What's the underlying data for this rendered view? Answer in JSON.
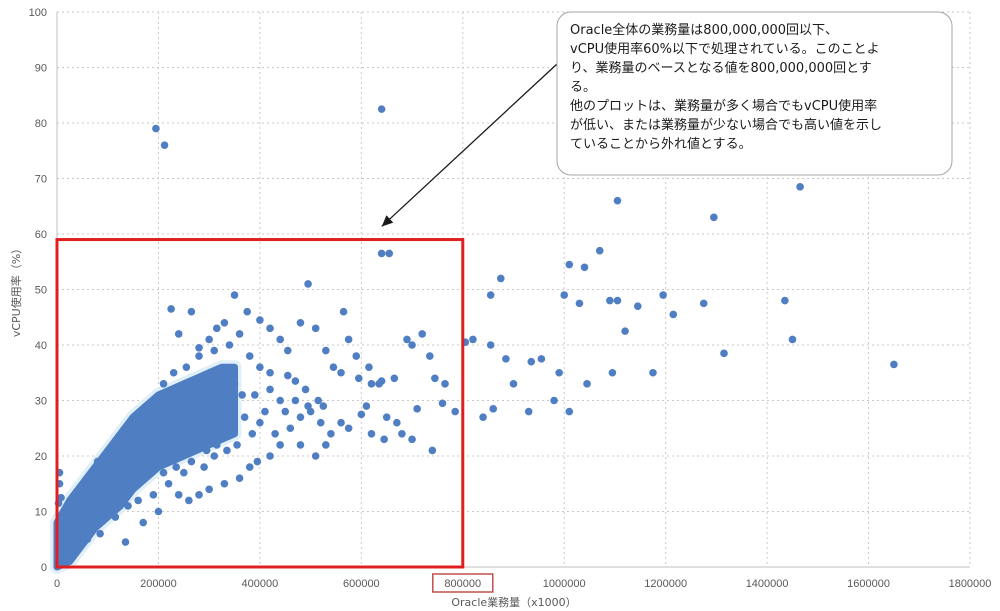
{
  "chart_data": {
    "type": "scatter",
    "title": "",
    "xlabel": "Oracle業務量（x1000）",
    "ylabel": "vCPU使用率（%）",
    "xlim": [
      0,
      1800000
    ],
    "ylim": [
      0,
      100
    ],
    "xticks": [
      0,
      200000,
      400000,
      600000,
      800000,
      1000000,
      1200000,
      1400000,
      1600000,
      1800000
    ],
    "xtick_labels": [
      "0",
      "200000",
      "400000",
      "600000",
      "800000",
      "1000000",
      "1200000",
      "1400000",
      "1600000",
      "1800000"
    ],
    "yticks": [
      0,
      10,
      20,
      30,
      40,
      50,
      60,
      70,
      80,
      90,
      100
    ],
    "ytick_labels": [
      "0",
      "10",
      "20",
      "30",
      "40",
      "50",
      "60",
      "70",
      "80",
      "90",
      "100"
    ],
    "grid": true,
    "point_color": "#4f7ec2",
    "highlight_box": {
      "x": [
        0,
        800000
      ],
      "y": [
        0,
        59
      ],
      "color": "#e02020"
    },
    "highlight_tick": {
      "value": 800000,
      "color": "#c0504d"
    },
    "annotation": {
      "lines": [
        "Oracle全体の業務量は800,000,000回以下、",
        "vCPU使用率60%以下で処理されている。このことよ",
        "り、業務量のベースとなる値を800,000,000回とす",
        "る。",
        "他のプロットは、業務量が多く場合でもvCPU使用率",
        "が低い、または業務量が少ない場合でも高い値を示し",
        "ていることから外れ値とする。"
      ],
      "arrow_target": [
        660000,
        61
      ]
    },
    "cluster_bands": [
      [
        0,
        0,
        8
      ],
      [
        25000,
        1,
        12
      ],
      [
        50000,
        4,
        15
      ],
      [
        75000,
        7,
        18
      ],
      [
        100000,
        9,
        21
      ],
      [
        125000,
        11,
        24
      ],
      [
        150000,
        14,
        27
      ],
      [
        175000,
        16,
        29
      ],
      [
        200000,
        18,
        31
      ],
      [
        225000,
        19,
        32
      ],
      [
        250000,
        20,
        33
      ],
      [
        275000,
        21,
        34
      ],
      [
        300000,
        22,
        35
      ],
      [
        325000,
        23,
        36
      ],
      [
        350000,
        24,
        36
      ]
    ],
    "points": [
      [
        195000,
        79
      ],
      [
        212000,
        76
      ],
      [
        640000,
        82.5
      ],
      [
        640000,
        56.5
      ],
      [
        655000,
        56.5
      ],
      [
        1105000,
        66
      ],
      [
        1295000,
        63
      ],
      [
        1465000,
        68.5
      ],
      [
        1010000,
        54.5
      ],
      [
        1040000,
        54
      ],
      [
        1070000,
        57
      ],
      [
        875000,
        52
      ],
      [
        855000,
        49
      ],
      [
        1000000,
        49
      ],
      [
        1030000,
        47.5
      ],
      [
        1090000,
        48
      ],
      [
        1105000,
        48
      ],
      [
        1145000,
        47
      ],
      [
        1195000,
        49
      ],
      [
        1215000,
        45.5
      ],
      [
        1275000,
        47.5
      ],
      [
        1435000,
        48
      ],
      [
        1450000,
        41
      ],
      [
        1120000,
        42.5
      ],
      [
        1315000,
        38.5
      ],
      [
        1650000,
        36.5
      ],
      [
        1175000,
        35
      ],
      [
        1095000,
        35
      ],
      [
        1045000,
        33
      ],
      [
        990000,
        35
      ],
      [
        955000,
        37.5
      ],
      [
        935000,
        37
      ],
      [
        885000,
        37.5
      ],
      [
        855000,
        40
      ],
      [
        820000,
        41
      ],
      [
        805000,
        40.5
      ],
      [
        900000,
        33
      ],
      [
        980000,
        30
      ],
      [
        1010000,
        28
      ],
      [
        930000,
        28
      ],
      [
        860000,
        28.5
      ],
      [
        840000,
        27
      ],
      [
        785000,
        28
      ],
      [
        765000,
        33
      ],
      [
        745000,
        34
      ],
      [
        735000,
        38
      ],
      [
        700000,
        40
      ],
      [
        690000,
        41
      ],
      [
        665000,
        34
      ],
      [
        640000,
        33.5
      ],
      [
        620000,
        33
      ],
      [
        610000,
        29
      ],
      [
        600000,
        27.5
      ],
      [
        575000,
        25
      ],
      [
        560000,
        26
      ],
      [
        540000,
        24
      ],
      [
        520000,
        26
      ],
      [
        500000,
        28
      ],
      [
        480000,
        27
      ],
      [
        460000,
        25
      ],
      [
        440000,
        22
      ],
      [
        420000,
        20
      ],
      [
        395000,
        19
      ],
      [
        380000,
        18
      ],
      [
        720000,
        42
      ],
      [
        760000,
        29.5
      ],
      [
        710000,
        28.5
      ],
      [
        650000,
        27
      ],
      [
        670000,
        26
      ],
      [
        680000,
        24
      ],
      [
        645000,
        23
      ],
      [
        620000,
        24
      ],
      [
        700000,
        23
      ],
      [
        740000,
        21
      ],
      [
        590000,
        38
      ],
      [
        560000,
        35
      ],
      [
        530000,
        39
      ],
      [
        510000,
        43
      ],
      [
        495000,
        51
      ],
      [
        480000,
        44
      ],
      [
        455000,
        39
      ],
      [
        440000,
        41
      ],
      [
        420000,
        43
      ],
      [
        400000,
        44.5
      ],
      [
        375000,
        46
      ],
      [
        350000,
        49
      ],
      [
        330000,
        44
      ],
      [
        315000,
        43
      ],
      [
        300000,
        41
      ],
      [
        280000,
        39.5
      ],
      [
        265000,
        46
      ],
      [
        225000,
        46.5
      ],
      [
        240000,
        42
      ],
      [
        565000,
        46
      ],
      [
        575000,
        41
      ],
      [
        440000,
        30
      ],
      [
        470000,
        30
      ],
      [
        490000,
        32
      ],
      [
        420000,
        32
      ],
      [
        510000,
        20
      ],
      [
        530000,
        22
      ],
      [
        480000,
        22
      ],
      [
        360000,
        16
      ],
      [
        330000,
        15
      ],
      [
        300000,
        14
      ],
      [
        280000,
        13
      ],
      [
        260000,
        12
      ],
      [
        240000,
        13
      ],
      [
        200000,
        10
      ],
      [
        170000,
        8
      ],
      [
        140000,
        11
      ],
      [
        115000,
        9
      ],
      [
        135000,
        4.5
      ],
      [
        85000,
        6
      ],
      [
        60000,
        5
      ],
      [
        40000,
        4
      ],
      [
        25000,
        3
      ],
      [
        12000,
        2
      ],
      [
        5000,
        17
      ],
      [
        5000,
        15
      ],
      [
        3000,
        11.5
      ],
      [
        8000,
        12.5
      ],
      [
        2000,
        8
      ],
      [
        4000,
        5
      ],
      [
        2500,
        2.5
      ],
      [
        30000,
        7
      ],
      [
        45000,
        10
      ],
      [
        70000,
        12
      ],
      [
        90000,
        14
      ],
      [
        110000,
        17
      ],
      [
        135000,
        20
      ],
      [
        160000,
        24
      ],
      [
        185000,
        28
      ],
      [
        210000,
        33
      ],
      [
        230000,
        35
      ],
      [
        255000,
        36
      ],
      [
        280000,
        38
      ],
      [
        310000,
        39
      ],
      [
        340000,
        40
      ],
      [
        360000,
        42
      ],
      [
        380000,
        38
      ],
      [
        400000,
        36
      ],
      [
        420000,
        35
      ],
      [
        350000,
        33
      ],
      [
        390000,
        31
      ],
      [
        410000,
        28
      ],
      [
        370000,
        27
      ],
      [
        330000,
        26
      ],
      [
        310000,
        20
      ],
      [
        290000,
        18
      ],
      [
        250000,
        17
      ],
      [
        220000,
        15
      ],
      [
        190000,
        13
      ],
      [
        160000,
        12
      ],
      [
        130000,
        14
      ],
      [
        100000,
        17
      ],
      [
        80000,
        19
      ],
      [
        60000,
        15
      ],
      [
        240000,
        25
      ],
      [
        270000,
        30
      ],
      [
        300000,
        32
      ],
      [
        205000,
        21
      ],
      [
        175000,
        19
      ],
      [
        145000,
        17
      ],
      [
        120000,
        22
      ],
      [
        95000,
        11
      ],
      [
        75000,
        9
      ],
      [
        250000,
        22
      ],
      [
        280000,
        24
      ],
      [
        320000,
        30
      ],
      [
        345000,
        35
      ],
      [
        365000,
        31
      ],
      [
        470000,
        33.5
      ],
      [
        455000,
        34.5
      ],
      [
        615000,
        36
      ],
      [
        595000,
        34
      ],
      [
        545000,
        36
      ],
      [
        635000,
        33
      ],
      [
        515000,
        30
      ],
      [
        495000,
        29
      ],
      [
        525000,
        29
      ],
      [
        400000,
        26
      ],
      [
        430000,
        24
      ],
      [
        450000,
        28
      ],
      [
        385000,
        24
      ],
      [
        355000,
        22
      ],
      [
        335000,
        21
      ],
      [
        315000,
        22
      ],
      [
        295000,
        21
      ],
      [
        265000,
        19
      ],
      [
        235000,
        18
      ],
      [
        210000,
        17
      ]
    ]
  }
}
